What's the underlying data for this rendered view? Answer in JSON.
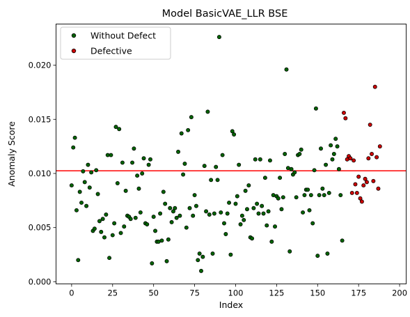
{
  "chart_data": {
    "type": "scatter",
    "title": "Model BasicVAE_LLR BSE",
    "xlabel": "Index",
    "ylabel": "Anomaly Score",
    "xlim": [
      -9.5,
      204
    ],
    "ylim": [
      -0.0002,
      0.0238
    ],
    "x_ticks": [
      0,
      25,
      50,
      75,
      100,
      125,
      150,
      175,
      200
    ],
    "y_ticks": [
      0.0,
      0.005,
      0.01,
      0.015,
      0.02
    ],
    "y_tick_labels": [
      "0.000",
      "0.005",
      "0.010",
      "0.015",
      "0.020"
    ],
    "threshold": {
      "value": 0.01025,
      "color": "#ff0000"
    },
    "legend_position": "upper-left",
    "series": [
      {
        "name": "Without Defect",
        "color": "#006400",
        "points": [
          [
            0,
            0.0089
          ],
          [
            1,
            0.0124
          ],
          [
            2,
            0.0133
          ],
          [
            3,
            0.0066
          ],
          [
            4,
            0.002
          ],
          [
            5,
            0.0083
          ],
          [
            6,
            0.0073
          ],
          [
            7,
            0.0102
          ],
          [
            8,
            0.0092
          ],
          [
            9,
            0.007
          ],
          [
            10,
            0.0108
          ],
          [
            11,
            0.0087
          ],
          [
            12,
            0.0101
          ],
          [
            13,
            0.0047
          ],
          [
            14,
            0.0049
          ],
          [
            15,
            0.0103
          ],
          [
            16,
            0.0081
          ],
          [
            17,
            0.0056
          ],
          [
            18,
            0.0046
          ],
          [
            19,
            0.0058
          ],
          [
            20,
            0.0041
          ],
          [
            21,
            0.0062
          ],
          [
            22,
            0.0117
          ],
          [
            23,
            0.0022
          ],
          [
            24,
            0.0117
          ],
          [
            25,
            0.0043
          ],
          [
            26,
            0.0054
          ],
          [
            27,
            0.0143
          ],
          [
            28,
            0.0091
          ],
          [
            29,
            0.0141
          ],
          [
            30,
            0.0045
          ],
          [
            31,
            0.011
          ],
          [
            32,
            0.0051
          ],
          [
            33,
            0.0084
          ],
          [
            34,
            0.0061
          ],
          [
            35,
            0.006
          ],
          [
            36,
            0.0058
          ],
          [
            37,
            0.011
          ],
          [
            38,
            0.0123
          ],
          [
            39,
            0.0059
          ],
          [
            40,
            0.0098
          ],
          [
            41,
            0.0086
          ],
          [
            42,
            0.0064
          ],
          [
            43,
            0.01
          ],
          [
            44,
            0.0114
          ],
          [
            45,
            0.0054
          ],
          [
            46,
            0.0053
          ],
          [
            47,
            0.0108
          ],
          [
            48,
            0.0113
          ],
          [
            49,
            0.0017
          ],
          [
            50,
            0.006
          ],
          [
            51,
            0.0047
          ],
          [
            52,
            0.0037
          ],
          [
            53,
            0.0037
          ],
          [
            54,
            0.0063
          ],
          [
            55,
            0.0038
          ],
          [
            56,
            0.0083
          ],
          [
            57,
            0.0072
          ],
          [
            58,
            0.0019
          ],
          [
            59,
            0.0039
          ],
          [
            60,
            0.0068
          ],
          [
            61,
            0.0055
          ],
          [
            62,
            0.0065
          ],
          [
            63,
            0.0068
          ],
          [
            64,
            0.0059
          ],
          [
            65,
            0.012
          ],
          [
            66,
            0.0061
          ],
          [
            67,
            0.0137
          ],
          [
            68,
            0.0099
          ],
          [
            69,
            0.0109
          ],
          [
            70,
            0.005
          ],
          [
            71,
            0.014
          ],
          [
            72,
            0.0068
          ],
          [
            73,
            0.0152
          ],
          [
            74,
            0.0061
          ],
          [
            75,
            0.008
          ],
          [
            76,
            0.007
          ],
          [
            77,
            0.002
          ],
          [
            78,
            0.0026
          ],
          [
            79,
            0.001
          ],
          [
            80,
            0.0023
          ],
          [
            81,
            0.0107
          ],
          [
            82,
            0.0065
          ],
          [
            83,
            0.0157
          ],
          [
            84,
            0.0062
          ],
          [
            85,
            0.0094
          ],
          [
            86,
            0.0026
          ],
          [
            87,
            0.0063
          ],
          [
            88,
            0.0106
          ],
          [
            89,
            0.0094
          ],
          [
            90,
            0.0226
          ],
          [
            91,
            0.0064
          ],
          [
            92,
            0.0117
          ],
          [
            93,
            0.0054
          ],
          [
            94,
            0.0044
          ],
          [
            95,
            0.0063
          ],
          [
            96,
            0.0073
          ],
          [
            97,
            0.0025
          ],
          [
            98,
            0.0139
          ],
          [
            99,
            0.0136
          ],
          [
            100,
            0.0072
          ],
          [
            101,
            0.0079
          ],
          [
            102,
            0.0108
          ],
          [
            103,
            0.0053
          ],
          [
            104,
            0.0061
          ],
          [
            105,
            0.0057
          ],
          [
            106,
            0.0084
          ],
          [
            107,
            0.0067
          ],
          [
            108,
            0.0089
          ],
          [
            109,
            0.0041
          ],
          [
            110,
            0.004
          ],
          [
            111,
            0.0068
          ],
          [
            112,
            0.0113
          ],
          [
            113,
            0.0072
          ],
          [
            114,
            0.0063
          ],
          [
            115,
            0.0113
          ],
          [
            116,
            0.007
          ],
          [
            117,
            0.0063
          ],
          [
            118,
            0.0096
          ],
          [
            119,
            0.0052
          ],
          [
            120,
            0.0065
          ],
          [
            121,
            0.0112
          ],
          [
            122,
            0.0037
          ],
          [
            123,
            0.008
          ],
          [
            124,
            0.0051
          ],
          [
            125,
            0.0079
          ],
          [
            126,
            0.0077
          ],
          [
            127,
            0.0096
          ],
          [
            128,
            0.0067
          ],
          [
            129,
            0.0078
          ],
          [
            130,
            0.0118
          ],
          [
            131,
            0.0196
          ],
          [
            132,
            0.0105
          ],
          [
            133,
            0.0028
          ],
          [
            134,
            0.0104
          ],
          [
            135,
            0.0099
          ],
          [
            136,
            0.0101
          ],
          [
            137,
            0.0078
          ],
          [
            138,
            0.0117
          ],
          [
            139,
            0.0118
          ],
          [
            140,
            0.0122
          ],
          [
            141,
            0.0064
          ],
          [
            142,
            0.008
          ],
          [
            143,
            0.0085
          ],
          [
            144,
            0.0085
          ],
          [
            145,
            0.0066
          ],
          [
            146,
            0.008
          ],
          [
            147,
            0.0054
          ],
          [
            148,
            0.0103
          ],
          [
            149,
            0.016
          ],
          [
            150,
            0.0024
          ],
          [
            151,
            0.008
          ],
          [
            152,
            0.0123
          ],
          [
            153,
            0.0086
          ],
          [
            154,
            0.008
          ],
          [
            155,
            0.0108
          ],
          [
            156,
            0.0026
          ],
          [
            157,
            0.0082
          ],
          [
            158,
            0.0126
          ],
          [
            159,
            0.0113
          ],
          [
            160,
            0.0118
          ],
          [
            161,
            0.0132
          ],
          [
            162,
            0.0125
          ],
          [
            163,
            0.0104
          ],
          [
            164,
            0.008
          ],
          [
            165,
            0.0038
          ]
        ]
      },
      {
        "name": "Defective",
        "color": "#cc0000",
        "points": [
          [
            166,
            0.0156
          ],
          [
            167,
            0.0151
          ],
          [
            168,
            0.0113
          ],
          [
            169,
            0.0116
          ],
          [
            170,
            0.0114
          ],
          [
            171,
            0.0082
          ],
          [
            172,
            0.0112
          ],
          [
            173,
            0.009
          ],
          [
            174,
            0.0082
          ],
          [
            175,
            0.0097
          ],
          [
            176,
            0.0077
          ],
          [
            177,
            0.0074
          ],
          [
            178,
            0.0089
          ],
          [
            179,
            0.0095
          ],
          [
            180,
            0.0092
          ],
          [
            181,
            0.0114
          ],
          [
            182,
            0.0145
          ],
          [
            183,
            0.0118
          ],
          [
            184,
            0.0093
          ],
          [
            185,
            0.018
          ],
          [
            186,
            0.0115
          ],
          [
            187,
            0.0086
          ],
          [
            188,
            0.0125
          ]
        ]
      }
    ]
  }
}
